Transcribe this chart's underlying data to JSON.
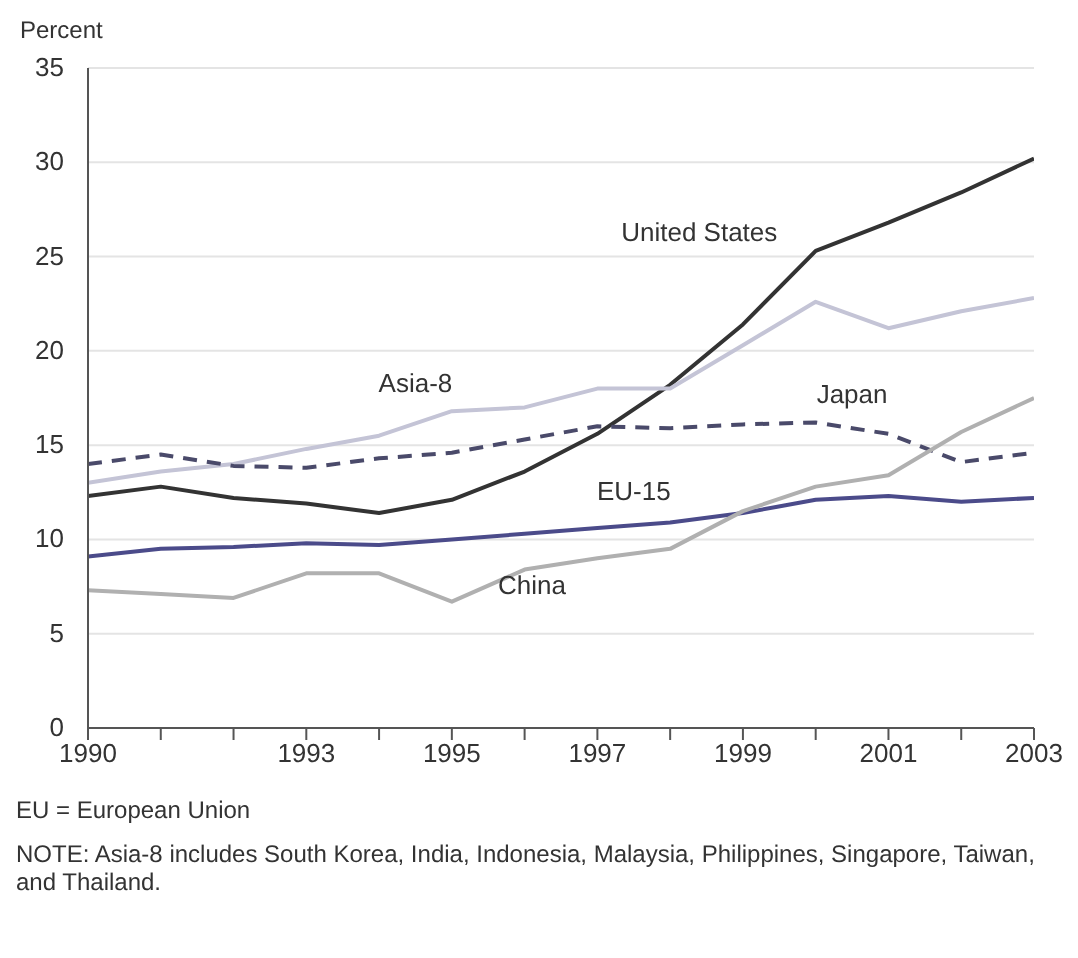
{
  "chart_data": {
    "type": "line",
    "ylabel": "Percent",
    "x": [
      1990,
      1991,
      1992,
      1993,
      1994,
      1995,
      1996,
      1997,
      1998,
      1999,
      2000,
      2001,
      2002,
      2003
    ],
    "xlim": [
      1990,
      2003
    ],
    "xticks": [
      1990,
      {
        "value": 1991,
        "label": null
      },
      {
        "value": 1992,
        "label": null
      },
      1993,
      {
        "value": 1994,
        "label": null
      },
      1995,
      {
        "value": 1996,
        "label": null
      },
      1997,
      {
        "value": 1998,
        "label": null
      },
      1999,
      {
        "value": 2000,
        "label": null
      },
      2001,
      {
        "value": 2002,
        "label": null
      },
      2003
    ],
    "ylim": [
      0,
      35
    ],
    "yticks": [
      0,
      5,
      10,
      15,
      20,
      25,
      30,
      35
    ],
    "grid": "y",
    "legend": false,
    "marker": "none",
    "series": [
      {
        "name": "United States",
        "color": "#333333",
        "line_style": "solid",
        "values": [
          12.3,
          12.8,
          12.2,
          11.9,
          11.4,
          12.1,
          13.6,
          15.6,
          18.2,
          21.4,
          25.3,
          26.8,
          28.4,
          30.2
        ]
      },
      {
        "name": "Asia-8",
        "color": "#c4c4d6",
        "line_style": "solid",
        "values": [
          13.0,
          13.6,
          14.0,
          14.8,
          15.5,
          16.8,
          17.0,
          18.0,
          18.0,
          20.3,
          22.6,
          21.2,
          22.1,
          22.8
        ]
      },
      {
        "name": "Japan",
        "color": "#4a4a6a",
        "line_style": "dashed",
        "values": [
          14.0,
          14.5,
          13.9,
          13.8,
          14.3,
          14.6,
          15.3,
          16.0,
          15.9,
          16.1,
          16.2,
          15.6,
          14.1,
          14.6
        ]
      },
      {
        "name": "EU-15",
        "color": "#4b4b8a",
        "line_style": "solid",
        "values": [
          9.1,
          9.5,
          9.6,
          9.8,
          9.7,
          10.0,
          10.3,
          10.6,
          10.9,
          11.4,
          12.1,
          12.3,
          12.0,
          12.2
        ]
      },
      {
        "name": "China",
        "color": "#b0b0b0",
        "line_style": "solid",
        "values": [
          7.3,
          7.1,
          6.9,
          8.2,
          8.2,
          6.7,
          8.4,
          9.0,
          9.5,
          11.5,
          12.8,
          13.4,
          15.7,
          17.5
        ]
      }
    ],
    "annotations": [
      "EU = European Union",
      "NOTE: Asia-8 includes South Korea, India, Indonesia, Malaysia, Philippines, Singapore, Taiwan, and Thailand."
    ]
  }
}
